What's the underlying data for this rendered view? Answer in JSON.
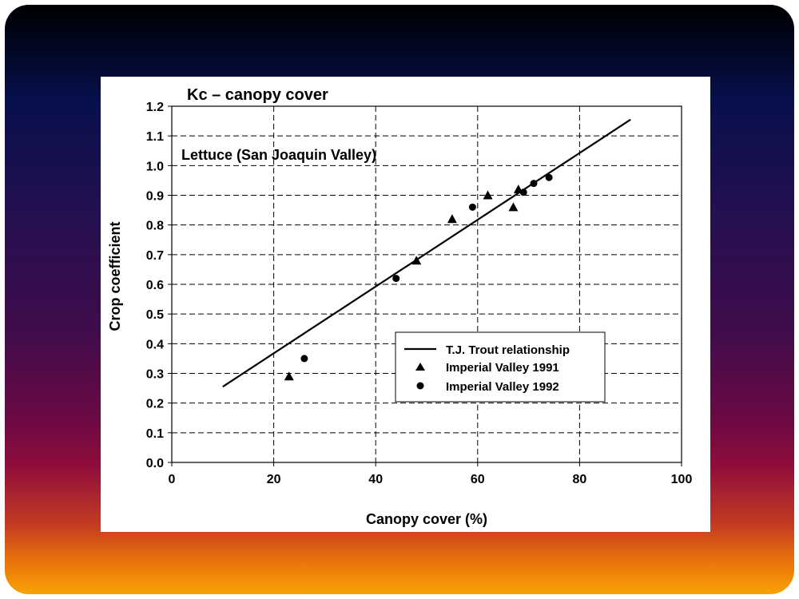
{
  "chart_data": {
    "type": "scatter",
    "title": "Kc – canopy cover",
    "annotation": "Lettuce (San Joaquin Valley)",
    "xlabel": "Canopy cover (%)",
    "ylabel": "Crop coefficient",
    "xlim": [
      0,
      100
    ],
    "ylim": [
      0,
      1.2
    ],
    "x_ticks": [
      "0",
      "20",
      "40",
      "60",
      "80",
      "100"
    ],
    "y_ticks": [
      "0.0",
      "0.1",
      "0.2",
      "0.3",
      "0.4",
      "0.5",
      "0.6",
      "0.7",
      "0.8",
      "0.9",
      "1.0",
      "1.1",
      "1.2"
    ],
    "grid": true,
    "legend_position": "lower-right",
    "series": [
      {
        "name": "T.J. Trout relationship",
        "kind": "line",
        "marker": "none",
        "points": [
          [
            10,
            0.255
          ],
          [
            90,
            1.155
          ]
        ]
      },
      {
        "name": "Imperial Valley 1991",
        "kind": "scatter",
        "marker": "triangle",
        "points": [
          [
            23,
            0.29
          ],
          [
            48,
            0.68
          ],
          [
            55,
            0.82
          ],
          [
            62,
            0.9
          ],
          [
            67,
            0.86
          ],
          [
            68,
            0.92
          ]
        ]
      },
      {
        "name": "Imperial Valley 1992",
        "kind": "scatter",
        "marker": "circle",
        "points": [
          [
            26,
            0.35
          ],
          [
            44,
            0.62
          ],
          [
            59,
            0.86
          ],
          [
            69,
            0.91
          ],
          [
            71,
            0.94
          ],
          [
            74,
            0.96
          ]
        ]
      }
    ]
  }
}
